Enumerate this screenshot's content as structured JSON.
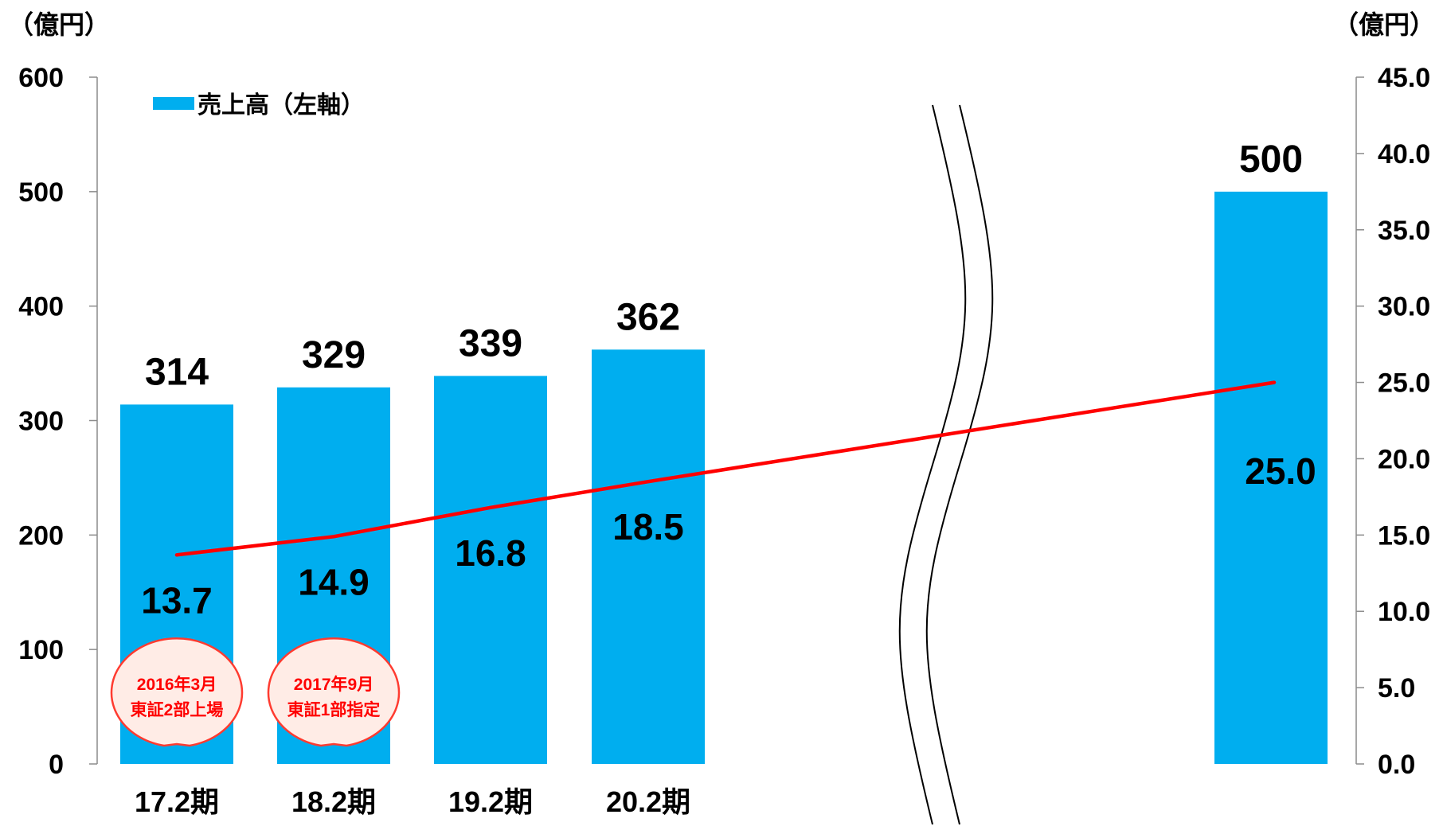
{
  "chart_data": {
    "type": "bar",
    "categories": [
      "17.2期",
      "18.2期",
      "19.2期",
      "20.2期",
      ""
    ],
    "series": [
      {
        "name": "売上高（左軸）",
        "type": "bar",
        "axis": "left",
        "color": "#00aeef",
        "values": [
          314,
          329,
          339,
          362,
          500
        ]
      },
      {
        "type": "line",
        "axis": "right",
        "color": "#ff0000",
        "values": [
          13.7,
          14.9,
          16.8,
          18.5,
          25.0
        ]
      }
    ],
    "left_axis": {
      "unit": "（億円）",
      "ylim": [
        0,
        600
      ],
      "ticks": [
        "0",
        "100",
        "200",
        "300",
        "400",
        "500",
        "600"
      ]
    },
    "right_axis": {
      "unit": "（億円）",
      "ylim": [
        0,
        45
      ],
      "ticks": [
        "0.0",
        "5.0",
        "10.0",
        "15.0",
        "20.0",
        "25.0",
        "30.0",
        "35.0",
        "40.0",
        "45.0"
      ]
    },
    "axis_break": "between 20.2期 and the last bar",
    "legend": {
      "label": "売上高（左軸）",
      "placement": "top-left"
    },
    "annotations": [
      {
        "category": "17.2期",
        "lines": [
          "2016年3月",
          "東証2部上場"
        ]
      },
      {
        "category": "18.2期",
        "lines": [
          "2017年9月",
          "東証1部指定"
        ]
      }
    ],
    "grid": false
  }
}
